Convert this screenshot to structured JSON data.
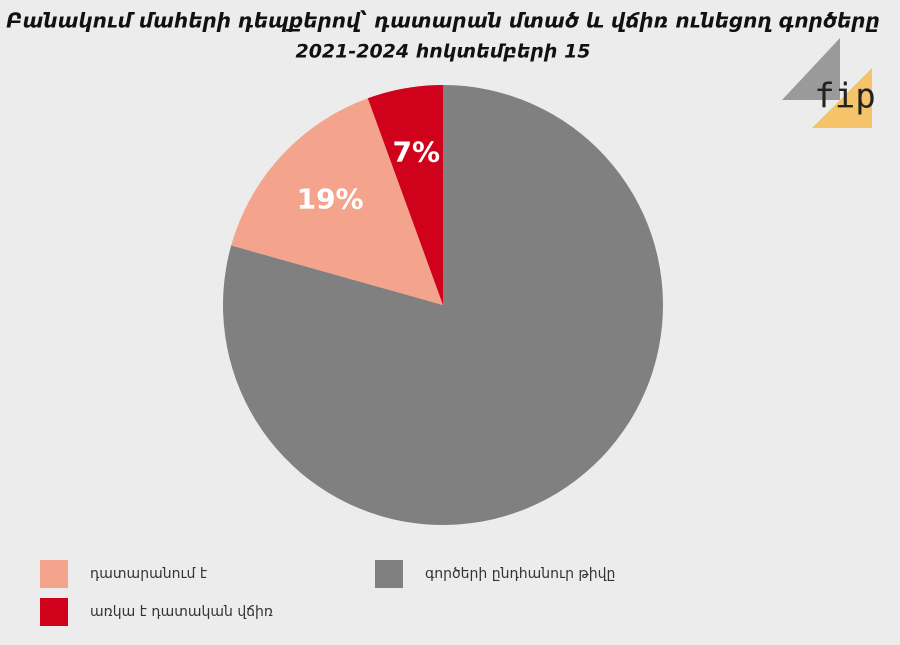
{
  "chart_data": {
    "type": "pie",
    "title": "Բանակում մահերի դեպքերով՝ դատարան մտած և վճիռ ունեցող գործերը",
    "subtitle": "2021-2024 հոկտեմբերի 15",
    "logo": "fip",
    "series": [
      {
        "name": "գործերի ընդհանուր թիվը",
        "color": "#808080"
      },
      {
        "name": "դատարանում է",
        "color": "#f4a38c"
      },
      {
        "name": "առկա է դատական վճիռ",
        "color": "#d0021b"
      }
    ],
    "values": [
      100,
      19,
      7
    ],
    "value_labels": [
      null,
      "19%",
      "7%"
    ]
  }
}
